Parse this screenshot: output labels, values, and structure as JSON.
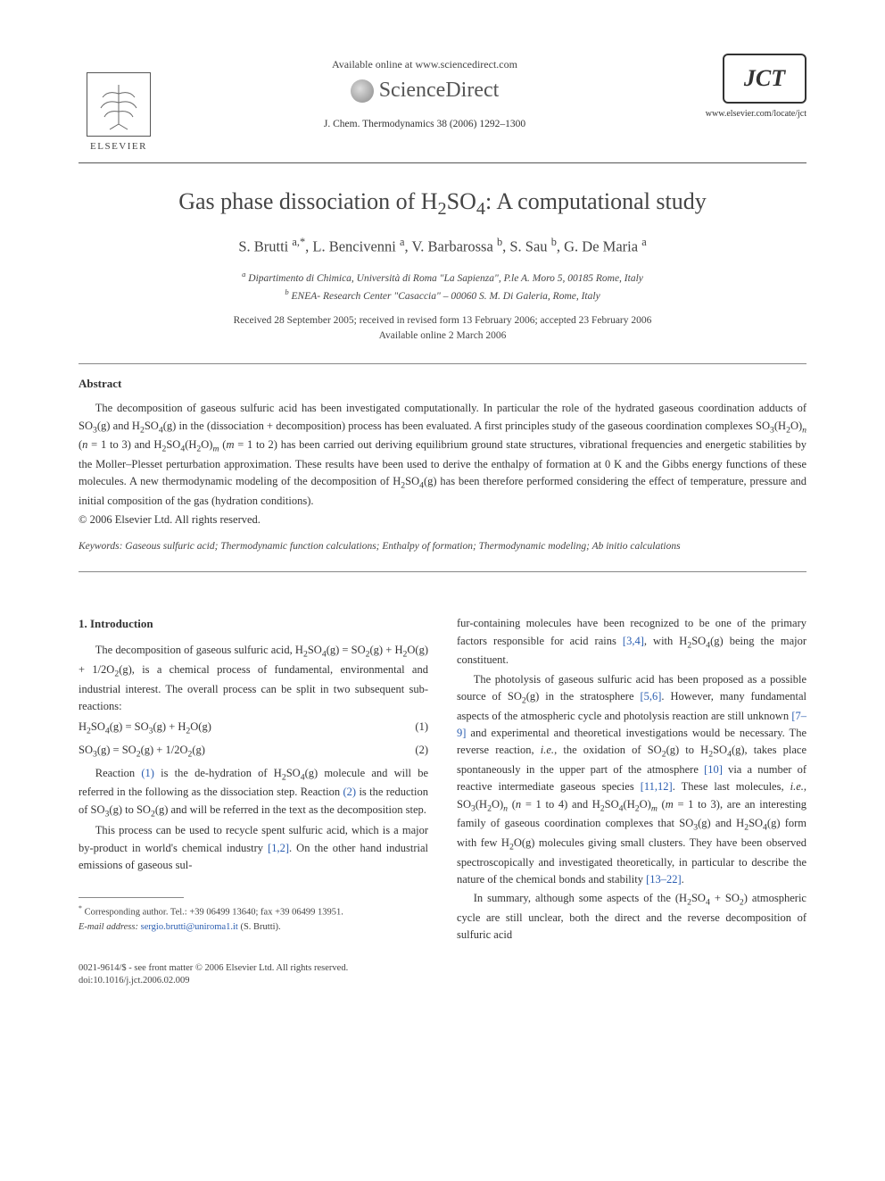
{
  "header": {
    "available_online": "Available online at www.sciencedirect.com",
    "sciencedirect": "ScienceDirect",
    "cite_line": "J. Chem. Thermodynamics 38 (2006) 1292–1300",
    "elsevier": "ELSEVIER",
    "jct": "JCT",
    "jct_url": "www.elsevier.com/locate/jct"
  },
  "title_parts": {
    "pre": "Gas phase dissociation of H",
    "sub1": "2",
    "mid": "SO",
    "sub2": "4",
    "post": ": A computational study"
  },
  "authors_html": "S. Brutti <sup>a,*</sup>, L. Bencivenni <sup>a</sup>, V. Barbarossa <sup>b</sup>, S. Sau <sup>b</sup>, G. De Maria <sup>a</sup>",
  "affiliations": {
    "a": "Dipartimento di Chimica, Università di Roma \"La Sapienza\", P.le A. Moro 5, 00185 Rome, Italy",
    "b": "ENEA- Research Center \"Casaccia\" – 00060 S. M. Di Galeria, Rome, Italy"
  },
  "dates": {
    "received": "Received 28 September 2005; received in revised form 13 February 2006; accepted 23 February 2006",
    "online": "Available online 2 March 2006"
  },
  "abstract": {
    "heading": "Abstract",
    "body_html": "The decomposition of gaseous sulfuric acid has been investigated computationally. In particular the role of the hydrated gaseous coordination adducts of SO<sub>3</sub>(g) and H<sub>2</sub>SO<sub>4</sub>(g) in the (dissociation + decomposition) process has been evaluated. A first principles study of the gaseous coordination complexes SO<sub>3</sub>(H<sub>2</sub>O)<sub><i>n</i></sub> (<i>n</i> = 1 to 3) and H<sub>2</sub>SO<sub>4</sub>(H<sub>2</sub>O)<sub><i>m</i></sub> (<i>m</i> = 1 to 2) has been carried out deriving equilibrium ground state structures, vibrational frequencies and energetic stabilities by the Moller–Plesset perturbation approximation. These results have been used to derive the enthalpy of formation at 0 K and the Gibbs energy functions of these molecules. A new thermodynamic modeling of the decomposition of H<sub>2</sub>SO<sub>4</sub>(g) has been therefore performed considering the effect of temperature, pressure and initial composition of the gas (hydration conditions).",
    "copyright": "© 2006 Elsevier Ltd. All rights reserved."
  },
  "keywords": {
    "label": "Keywords:",
    "list": "Gaseous sulfuric acid; Thermodynamic function calculations; Enthalpy of formation; Thermodynamic modeling; Ab initio calculations"
  },
  "intro": {
    "heading": "1. Introduction",
    "p1_html": "The decomposition of gaseous sulfuric acid, H<sub>2</sub>SO<sub>4</sub>(g) = SO<sub>2</sub>(g) + H<sub>2</sub>O(g) + 1/2O<sub>2</sub>(g), is a chemical process of fundamental, environmental and industrial interest. The overall process can be split in two subsequent sub-reactions:",
    "eq1_html": "H<sub>2</sub>SO<sub>4</sub>(g) = SO<sub>3</sub>(g) + H<sub>2</sub>O(g)",
    "eq1_num": "(1)",
    "eq2_html": "SO<sub>3</sub>(g) = SO<sub>2</sub>(g) + 1/2O<sub>2</sub>(g)",
    "eq2_num": "(2)",
    "p2_html": "Reaction <span class=\"ref-link\">(1)</span> is the de-hydration of H<sub>2</sub>SO<sub>4</sub>(g) molecule and will be referred in the following as the dissociation step. Reaction <span class=\"ref-link\">(2)</span> is the reduction of SO<sub>3</sub>(g) to SO<sub>2</sub>(g) and will be referred in the text as the decomposition step.",
    "p3_html": "This process can be used to recycle spent sulfuric acid, which is a major by-product in world's chemical industry <span class=\"ref-link\">[1,2]</span>. On the other hand industrial emissions of gaseous sul-",
    "p4_html": "fur-containing molecules have been recognized to be one of the primary factors responsible for acid rains <span class=\"ref-link\">[3,4]</span>, with H<sub>2</sub>SO<sub>4</sub>(g) being the major constituent.",
    "p5_html": "The photolysis of gaseous sulfuric acid has been proposed as a possible source of SO<sub>2</sub>(g) in the stratosphere <span class=\"ref-link\">[5,6]</span>. However, many fundamental aspects of the atmospheric cycle and photolysis reaction are still unknown <span class=\"ref-link\">[7–9]</span> and experimental and theoretical investigations would be necessary. The reverse reaction, <i>i.e.</i>, the oxidation of SO<sub>2</sub>(g) to H<sub>2</sub>SO<sub>4</sub>(g), takes place spontaneously in the upper part of the atmosphere <span class=\"ref-link\">[10]</span> via a number of reactive intermediate gaseous species <span class=\"ref-link\">[11,12]</span>. These last molecules, <i>i.e.</i>, SO<sub>3</sub>(H<sub>2</sub>O)<sub><i>n</i></sub> (<i>n</i> = 1 to 4) and H<sub>2</sub>SO<sub>4</sub>(H<sub>2</sub>O)<sub><i>m</i></sub> (<i>m</i> = 1 to 3), are an interesting family of gaseous coordination complexes that SO<sub>3</sub>(g) and H<sub>2</sub>SO<sub>4</sub>(g) form with few H<sub>2</sub>O(g) molecules giving small clusters. They have been observed spectroscopically and investigated theoretically, in particular to describe the nature of the chemical bonds and stability <span class=\"ref-link\">[13–22]</span>.",
    "p6_html": "In summary, although some aspects of the (H<sub>2</sub>SO<sub>4</sub> + SO<sub>2</sub>) atmospheric cycle are still unclear, both the direct and the reverse decomposition of sulfuric acid"
  },
  "footnote": {
    "corr_html": "<sup>*</sup> Corresponding author. Tel.: +39 06499 13640; fax +39 06499 13951.",
    "email_label": "E-mail address:",
    "email": "sergio.brutti@uniroma1.it",
    "email_person": "(S. Brutti)."
  },
  "footer": {
    "line1": "0021-9614/$ - see front matter © 2006 Elsevier Ltd. All rights reserved.",
    "line2": "doi:10.1016/j.jct.2006.02.009"
  },
  "colors": {
    "link": "#2a5db0",
    "text": "#333333",
    "rule": "#555555"
  }
}
